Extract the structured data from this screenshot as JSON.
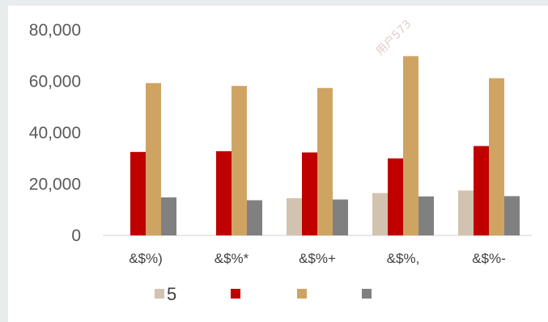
{
  "watermark": "用户573",
  "chart_data": {
    "type": "bar",
    "categories": [
      "&$%)",
      "&$%*",
      "&$%+",
      "&$%,",
      "&$%-"
    ],
    "series": [
      {
        "name": "5",
        "color": "#d2c3b1",
        "values": [
          0,
          0,
          14500,
          16500,
          17500
        ]
      },
      {
        "name": "",
        "color": "#c00000",
        "values": [
          32500,
          32800,
          32300,
          30000,
          34800
        ]
      },
      {
        "name": "",
        "color": "#cfa463",
        "values": [
          59300,
          58200,
          57400,
          69800,
          61200
        ]
      },
      {
        "name": "",
        "color": "#808080",
        "values": [
          14800,
          13700,
          14000,
          15200,
          15300
        ]
      }
    ],
    "y_ticks": [
      "0",
      "20,000",
      "40,000",
      "60,000",
      "80,000"
    ],
    "ylim": [
      0,
      80000
    ],
    "grid": false,
    "legend_position": "bottom"
  }
}
